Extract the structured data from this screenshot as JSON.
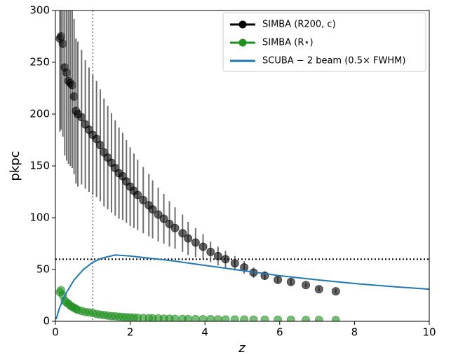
{
  "chart_data": {
    "type": "scatter",
    "xlabel": "z",
    "ylabel": "pkpc",
    "xlim": [
      0,
      10
    ],
    "ylim": [
      0,
      300
    ],
    "xticks": [
      0,
      2,
      4,
      6,
      8,
      10
    ],
    "yticks": [
      0,
      50,
      100,
      150,
      200,
      250,
      300
    ],
    "vline": 1,
    "hline": 60,
    "legend": "upper right",
    "series": [
      {
        "name": "SIMBA (R200, c)",
        "mode": "markers",
        "color": "#000000",
        "x": [
          0.12,
          0.15,
          0.2,
          0.25,
          0.3,
          0.35,
          0.4,
          0.45,
          0.5,
          0.55,
          0.6,
          0.7,
          0.8,
          0.9,
          1.0,
          1.1,
          1.2,
          1.3,
          1.4,
          1.5,
          1.6,
          1.7,
          1.8,
          1.9,
          2.0,
          2.1,
          2.2,
          2.35,
          2.5,
          2.6,
          2.75,
          2.9,
          3.05,
          3.2,
          3.4,
          3.55,
          3.75,
          3.95,
          4.15,
          4.35,
          4.55,
          4.8,
          5.05,
          5.3,
          5.6,
          5.95,
          6.3,
          6.7,
          7.05,
          7.5
        ],
        "values": [
          273,
          275,
          268,
          245,
          240,
          232,
          230,
          228,
          217,
          203,
          200,
          197,
          190,
          185,
          180,
          176,
          170,
          163,
          158,
          153,
          148,
          143,
          140,
          135,
          130,
          126,
          122,
          117,
          112,
          108,
          103,
          99,
          94,
          90,
          85,
          80,
          76,
          72,
          67,
          63,
          60,
          56,
          52,
          47,
          44,
          40,
          38,
          35,
          31,
          29
        ],
        "errors": [
          90,
          90,
          90,
          85,
          85,
          80,
          80,
          80,
          75,
          70,
          70,
          65,
          62,
          60,
          58,
          56,
          54,
          52,
          50,
          48,
          46,
          44,
          42,
          40,
          38,
          36,
          34,
          32,
          30,
          28,
          26,
          24,
          22,
          20,
          18,
          16,
          14,
          12,
          10,
          9,
          8,
          7,
          6,
          5,
          4,
          3,
          3,
          2,
          2,
          2
        ]
      },
      {
        "name": "SIMBA (R⋆)",
        "mode": "markers",
        "color": "#1f8f1f",
        "x": [
          0.12,
          0.15,
          0.2,
          0.25,
          0.3,
          0.35,
          0.4,
          0.45,
          0.5,
          0.55,
          0.6,
          0.7,
          0.8,
          0.9,
          1.0,
          1.1,
          1.2,
          1.3,
          1.4,
          1.5,
          1.6,
          1.7,
          1.8,
          1.9,
          2.0,
          2.1,
          2.2,
          2.35,
          2.5,
          2.6,
          2.75,
          2.9,
          3.05,
          3.2,
          3.4,
          3.55,
          3.75,
          3.95,
          4.15,
          4.35,
          4.55,
          4.8,
          5.05,
          5.3,
          5.6,
          5.95,
          6.3,
          6.7,
          7.05,
          7.5
        ],
        "values": [
          28,
          30,
          25,
          20,
          18,
          17,
          15,
          14,
          13,
          12,
          11,
          10,
          9,
          8.5,
          8,
          7,
          6.5,
          6,
          5.5,
          5,
          4.8,
          4.5,
          4.2,
          4,
          3.8,
          3.6,
          3.4,
          3.2,
          3,
          2.9,
          2.8,
          2.6,
          2.5,
          2.4,
          2.3,
          2.2,
          2.1,
          2,
          2,
          1.9,
          1.8,
          1.8,
          1.7,
          1.6,
          1.5,
          1.5,
          1.4,
          1.3,
          1.3,
          1.2
        ]
      },
      {
        "name": "SCUBA − 2 beam (0.5× FWHM)",
        "mode": "line",
        "color": "#1f77b4",
        "x": [
          0.02,
          0.1,
          0.25,
          0.5,
          0.75,
          1,
          1.25,
          1.6,
          2,
          2.5,
          3,
          4,
          5,
          6,
          7,
          8,
          9,
          10
        ],
        "values": [
          2,
          12,
          25,
          40,
          50,
          57,
          61,
          64,
          63,
          61,
          59,
          54,
          49,
          44,
          40,
          36.5,
          33.5,
          31
        ]
      }
    ]
  }
}
